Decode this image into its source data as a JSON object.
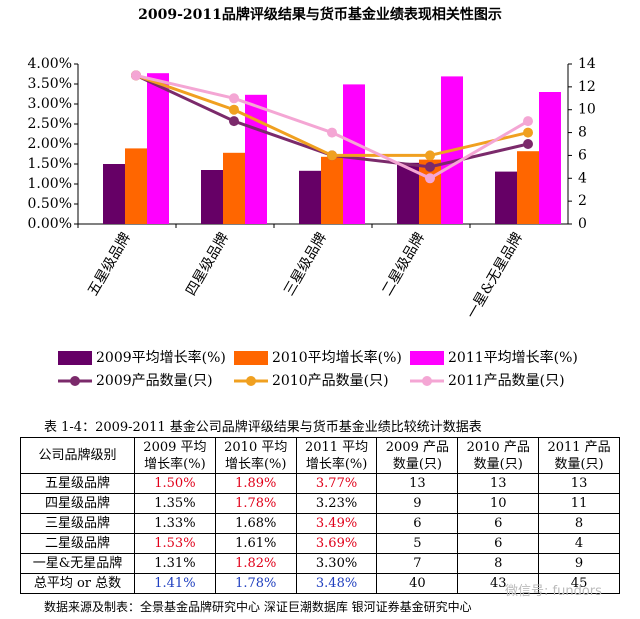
{
  "chart_data": {
    "type": "bar-line",
    "title": "2009-2011品牌评级结果与货币基金业绩表现相关性图示",
    "categories": [
      "五星级品牌",
      "四星级品牌",
      "三星级品牌",
      "二星级品牌",
      "一星&无星品牌"
    ],
    "series": [
      {
        "name": "2009平均增长率(%)",
        "color": "#660066",
        "type": "bar",
        "values": [
          1.5,
          1.35,
          1.33,
          1.53,
          1.31
        ]
      },
      {
        "name": "2010平均增长率(%)",
        "color": "#ff6600",
        "type": "bar",
        "values": [
          1.89,
          1.78,
          1.68,
          1.61,
          1.82
        ]
      },
      {
        "name": "2011平均增长率(%)",
        "color": "#ff00ff",
        "type": "bar",
        "values": [
          3.77,
          3.23,
          3.49,
          3.69,
          3.3
        ]
      },
      {
        "name": "2009产品数量(只)",
        "color": "#7b2a6b",
        "type": "line",
        "axis": "y2",
        "values": [
          13,
          9,
          6,
          5,
          7
        ]
      },
      {
        "name": "2010产品数量(只)",
        "color": "#f0a020",
        "type": "line",
        "axis": "y2",
        "values": [
          13,
          10,
          6,
          6,
          8
        ]
      },
      {
        "name": "2011产品数量(只)",
        "color": "#f4a6d4",
        "type": "line",
        "axis": "y2",
        "values": [
          13,
          11,
          8,
          4,
          9
        ]
      }
    ],
    "ylim": [
      0,
      4
    ],
    "yticks": [
      {
        "value": 0,
        "label": "0.00%"
      },
      {
        "value": 0.5,
        "label": "0.50%"
      },
      {
        "value": 1,
        "label": "1.00%"
      },
      {
        "value": 1.5,
        "label": "1.50%"
      },
      {
        "value": 2,
        "label": "2.00%"
      },
      {
        "value": 2.5,
        "label": "2.50%"
      },
      {
        "value": 3,
        "label": "3.00%"
      },
      {
        "value": 3.5,
        "label": "3.50%"
      },
      {
        "value": 4,
        "label": "4.00%"
      }
    ],
    "y2lim": [
      0,
      14
    ],
    "y2ticks": [
      0,
      2,
      4,
      6,
      8,
      10,
      12,
      14
    ]
  },
  "table": {
    "caption": "表 1-4：2009-2011 基金公司品牌评级结果与货币基金业绩比较统计数据表",
    "header": [
      "公司品牌级别",
      "2009 平均\n增长率(%)",
      "2010 平均\n增长率(%)",
      "2011 平均\n增长率(%)",
      "2009 产品\n数量(只)",
      "2010 产品\n数量(只)",
      "2011 产品\n数量(只)"
    ],
    "rows": [
      [
        "五星级品牌",
        "1.50%",
        "1.89%",
        "3.77%",
        "13",
        "13",
        "13"
      ],
      [
        "四星级品牌",
        "1.35%",
        "1.78%",
        "3.23%",
        "9",
        "10",
        "11"
      ],
      [
        "三星级品牌",
        "1.33%",
        "1.68%",
        "3.49%",
        "6",
        "6",
        "8"
      ],
      [
        "二星级品牌",
        "1.53%",
        "1.61%",
        "3.69%",
        "5",
        "6",
        "4"
      ],
      [
        "一星&无星品牌",
        "1.31%",
        "1.82%",
        "3.30%",
        "7",
        "8",
        "9"
      ],
      [
        "总平均 or 总数",
        "1.41%",
        "1.78%",
        "3.48%",
        "40",
        "43",
        "45"
      ]
    ],
    "highlights": [
      {
        "row": 0,
        "col": 1,
        "color": "#e0001a"
      },
      {
        "row": 0,
        "col": 2,
        "color": "#e0001a"
      },
      {
        "row": 0,
        "col": 3,
        "color": "#e0001a"
      },
      {
        "row": 1,
        "col": 2,
        "color": "#e0001a"
      },
      {
        "row": 2,
        "col": 3,
        "color": "#e0001a"
      },
      {
        "row": 3,
        "col": 1,
        "color": "#e0001a"
      },
      {
        "row": 3,
        "col": 3,
        "color": "#e0001a"
      },
      {
        "row": 4,
        "col": 2,
        "color": "#e0001a"
      },
      {
        "row": 5,
        "col": 1,
        "color": "#1f3fbf"
      },
      {
        "row": 5,
        "col": 2,
        "color": "#1f3fbf"
      },
      {
        "row": 5,
        "col": 3,
        "color": "#1f3fbf"
      }
    ],
    "source": "数据来源及制表：全景基金品牌研究中心 深证巨潮数据库 银河证券基金研究中心"
  },
  "watermark": "微信号: fundors"
}
